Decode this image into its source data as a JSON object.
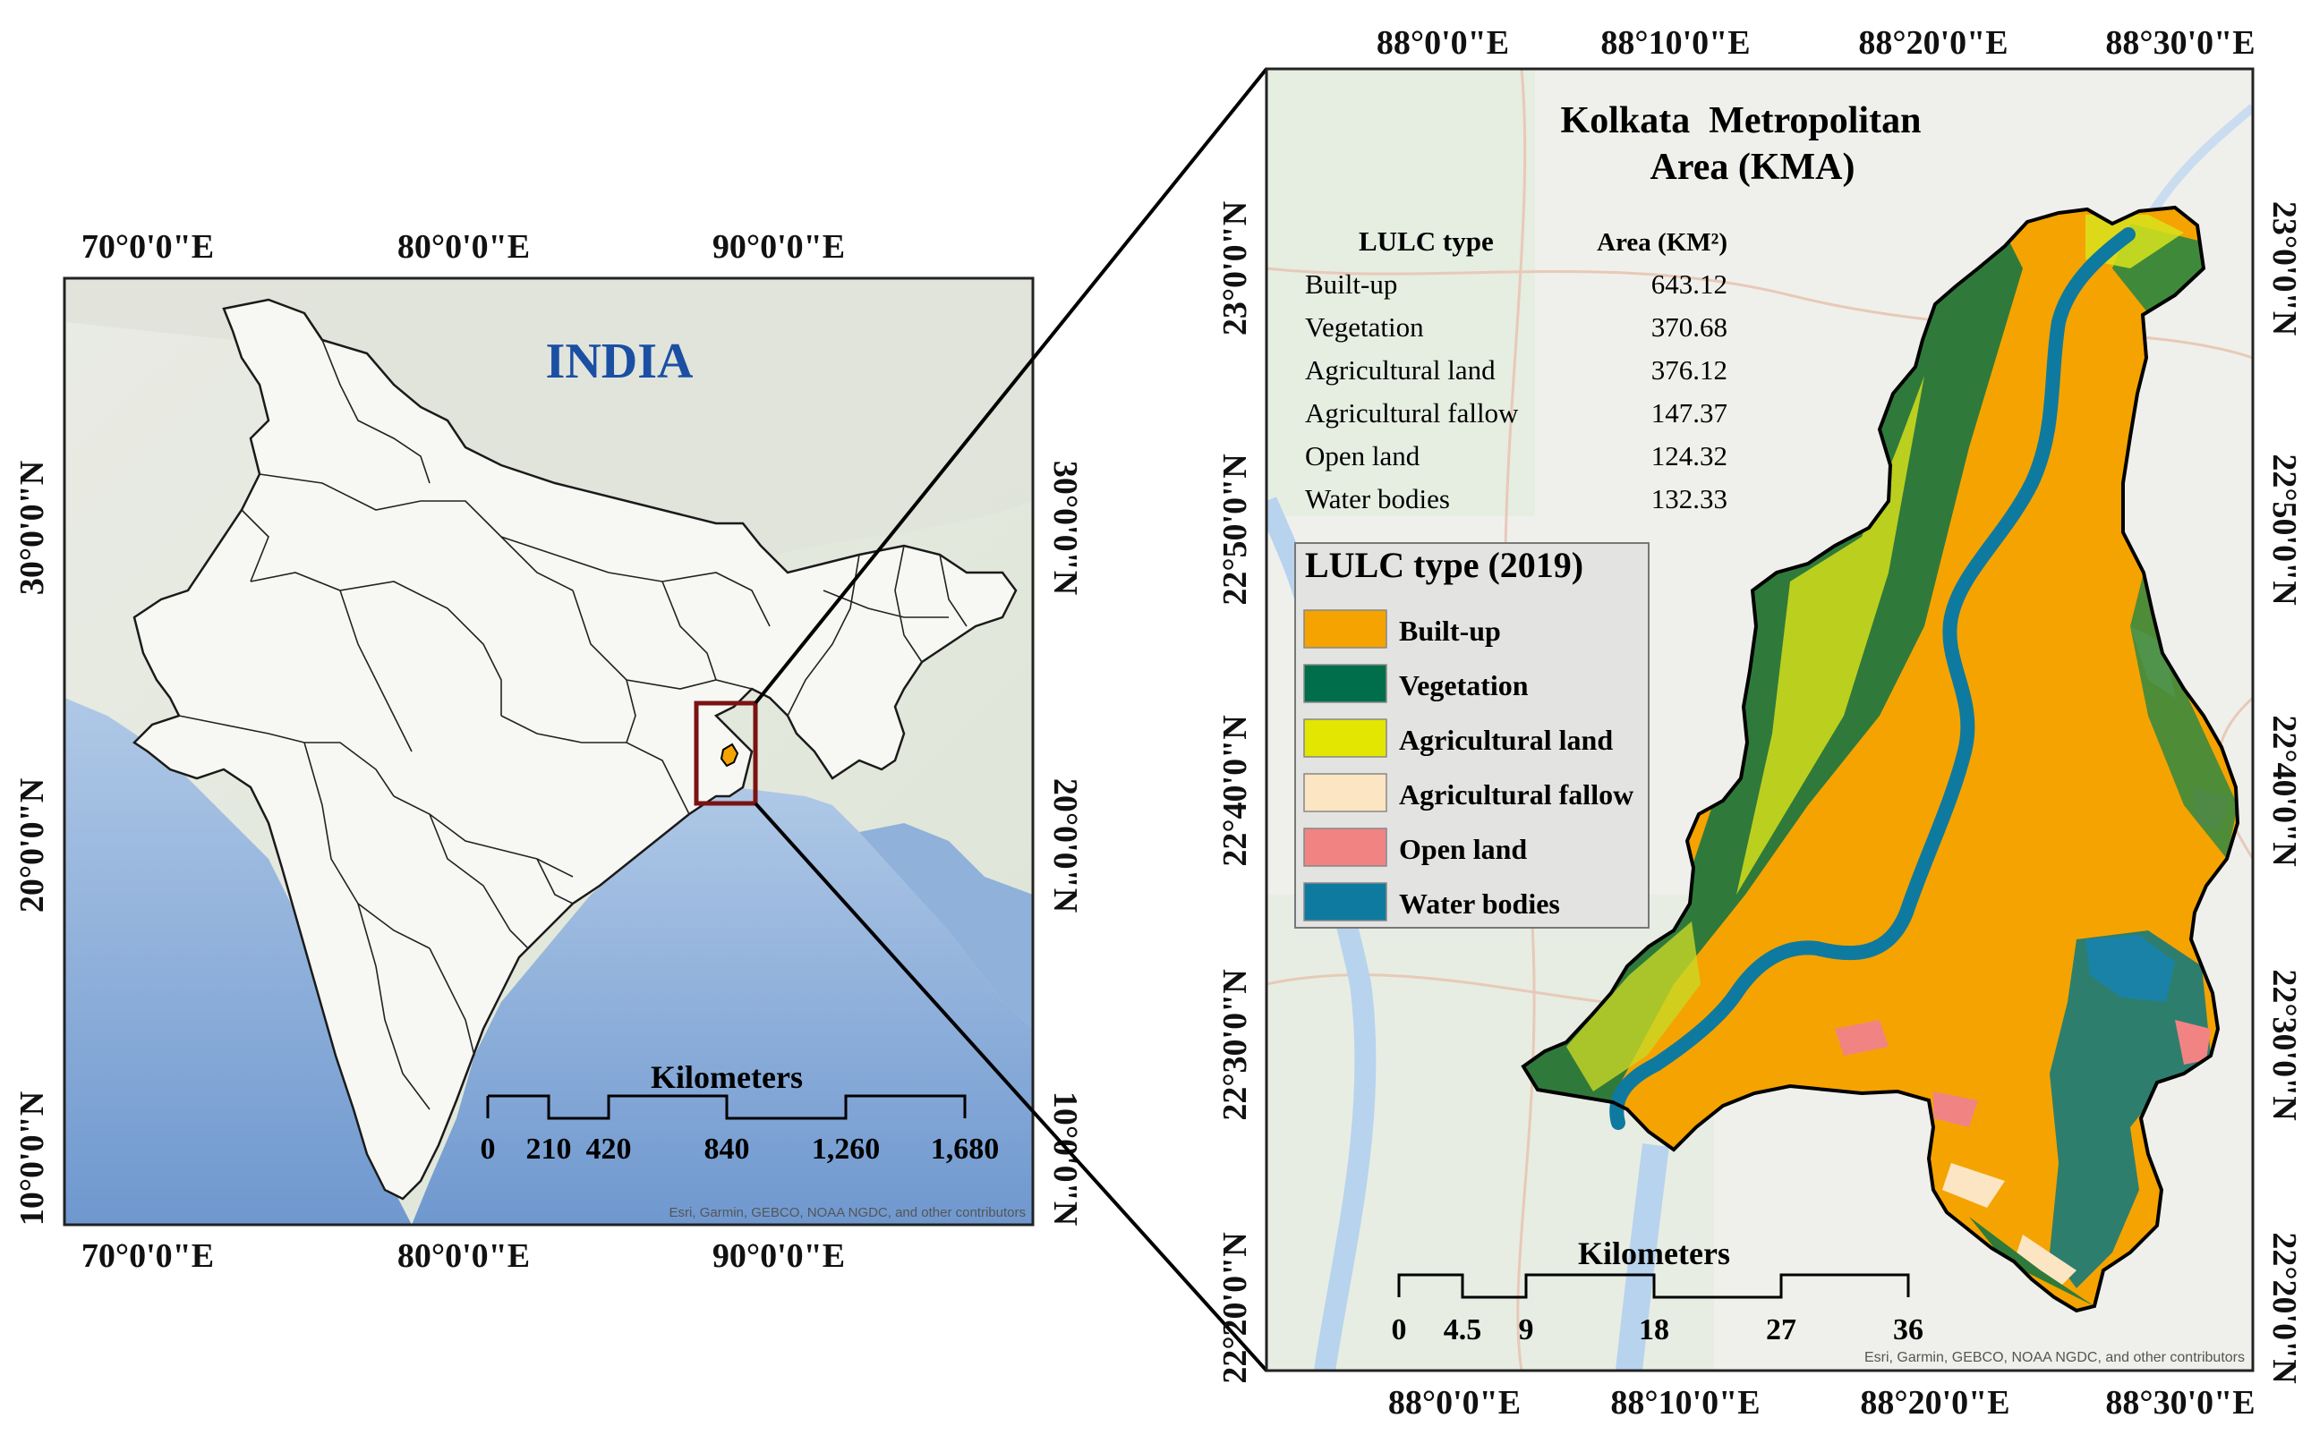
{
  "india_map": {
    "title": "INDIA",
    "top_ticks": [
      "70°0'0\"E",
      "80°0'0\"E",
      "90°0'0\"E"
    ],
    "bottom_ticks": [
      "70°0'0\"E",
      "80°0'0\"E",
      "90°0'0\"E"
    ],
    "left_ticks": [
      "30°0'0\"N",
      "20°0'0\"N",
      "10°0'0\"N"
    ],
    "right_ticks": [
      "30°0'0\"N",
      "20°0'0\"N",
      "10°0'0\"N"
    ],
    "scale_title": "Kilometers",
    "scale_labels": [
      "0",
      "210",
      "420",
      "840",
      "1,260",
      "1,680"
    ],
    "attribution": "Esri, Garmin, GEBCO, NOAA NGDC, and other contributors"
  },
  "kma_map": {
    "title_line1": "Kolkata  Metropolitan",
    "title_line2": "Area (KMA)",
    "top_ticks": [
      "88°0'0\"E",
      "88°10'0\"E",
      "88°20'0\"E",
      "88°30'0\"E"
    ],
    "bottom_ticks": [
      "88°0'0\"E",
      "88°10'0\"E",
      "88°20'0\"E",
      "88°30'0\"E"
    ],
    "left_ticks": [
      "23°0'0\"N",
      "22°50'0\"N",
      "22°40'0\"N",
      "22°30'0\"N",
      "22°20'0\"N"
    ],
    "right_ticks": [
      "23°0'0\"N",
      "22°50'0\"N",
      "22°40'0\"N",
      "22°30'0\"N",
      "22°20'0\"N"
    ],
    "area_table": {
      "header_type": "LULC type",
      "header_area": "Area (KM²)",
      "rows": [
        {
          "type": "Built-up",
          "area": "643.12"
        },
        {
          "type": "Vegetation",
          "area": "370.68"
        },
        {
          "type": "Agricultural land",
          "area": "376.12"
        },
        {
          "type": "Agricultural fallow",
          "area": "147.37"
        },
        {
          "type": "Open land",
          "area": "124.32"
        },
        {
          "type": "Water bodies",
          "area": "132.33"
        }
      ]
    },
    "legend": {
      "title": "LULC type (2019)",
      "items": [
        {
          "label": "Built-up",
          "color": "#F5A300"
        },
        {
          "label": "Vegetation",
          "color": "#006E4A"
        },
        {
          "label": "Agricultural land",
          "color": "#E2E600"
        },
        {
          "label": "Agricultural fallow",
          "color": "#FCE5C2"
        },
        {
          "label": "Open land",
          "color": "#F28383"
        },
        {
          "label": "Water bodies",
          "color": "#0F7A9F"
        }
      ]
    },
    "scale_title": "Kilometers",
    "scale_labels": [
      "0",
      "4.5",
      "9",
      "18",
      "27",
      "36"
    ],
    "attribution": "Esri, Garmin, GEBCO, NOAA NGDC, and other contributors"
  }
}
